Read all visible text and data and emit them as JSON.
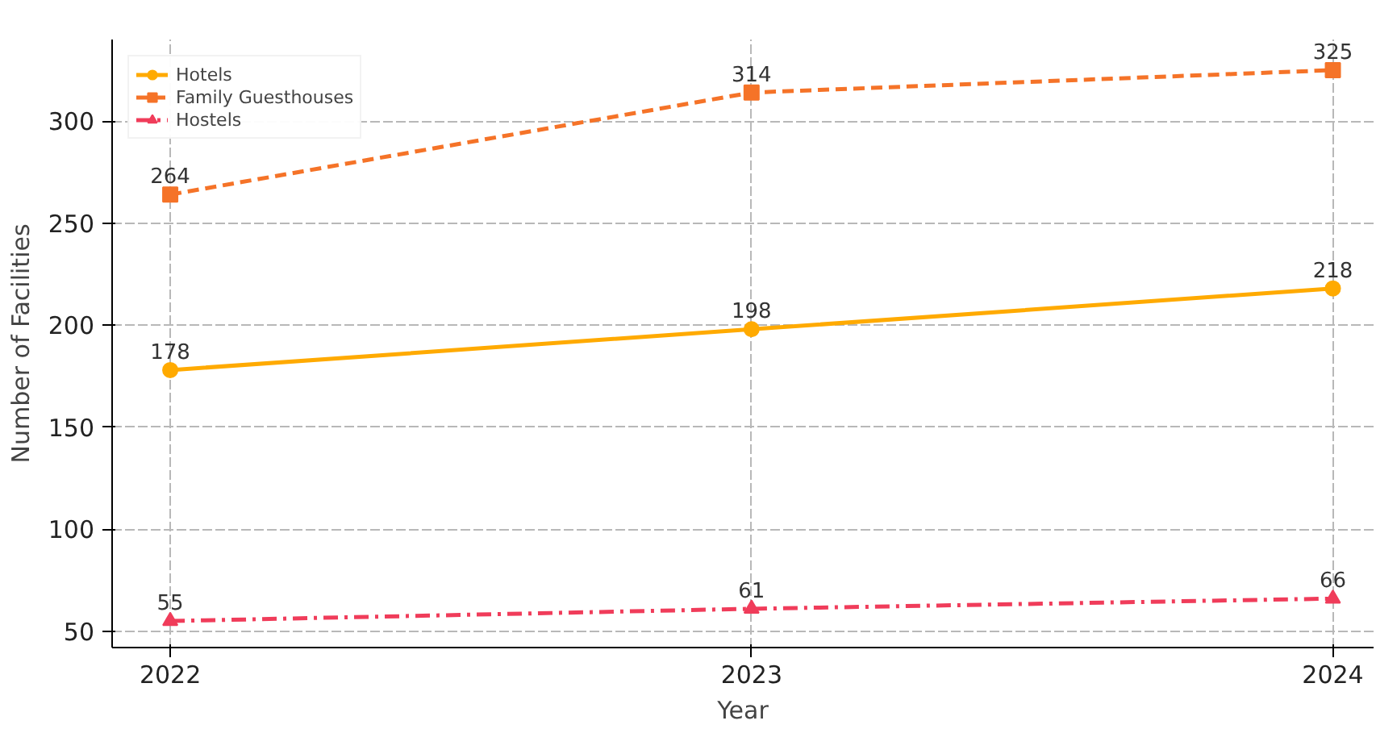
{
  "chart_data": {
    "type": "line",
    "xlabel": "Year",
    "ylabel": "Number of Facilities",
    "x": [
      2022,
      2023,
      2024
    ],
    "xlim": [
      2021.9,
      2024.07
    ],
    "xticks": [
      2022,
      2023,
      2024
    ],
    "ylim": [
      42,
      340
    ],
    "yticks": [
      50,
      100,
      150,
      200,
      250,
      300
    ],
    "series": [
      {
        "name": "Hotels",
        "color": "#ffaa00",
        "values": [
          178,
          198,
          218
        ],
        "marker": "circle",
        "line_style": "solid"
      },
      {
        "name": "Family Guesthouses",
        "color": "#f57328",
        "values": [
          264,
          314,
          325
        ],
        "marker": "square",
        "line_style": "dashed"
      },
      {
        "name": "Hostels",
        "color": "#f03c5a",
        "values": [
          55,
          61,
          66
        ],
        "marker": "triangle",
        "line_style": "dashdot"
      }
    ],
    "data_labels": true,
    "grid": true,
    "legend": "top left"
  }
}
